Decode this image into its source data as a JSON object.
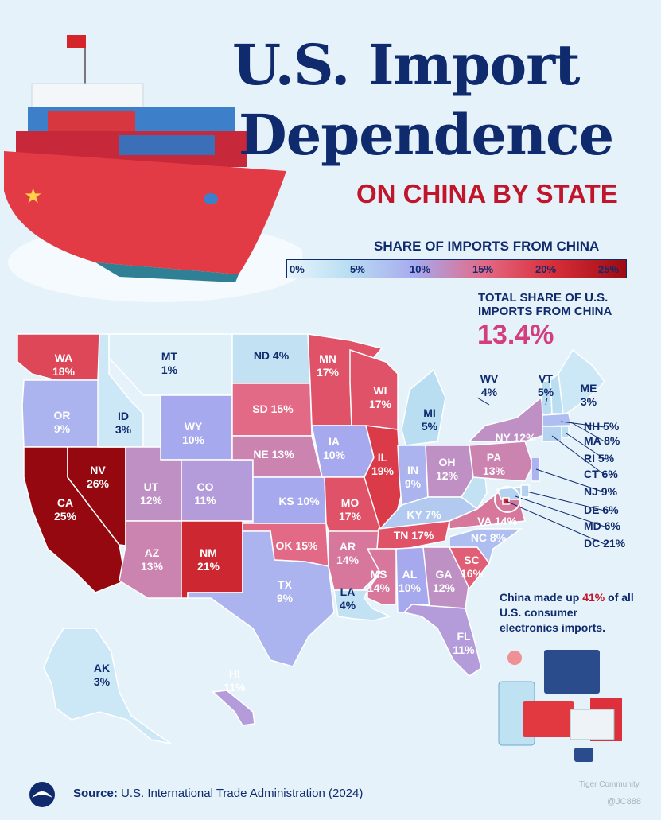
{
  "title_line1": "U.S. Import",
  "title_line2": "Dependence",
  "subtitle": "ON CHINA BY STATE",
  "legend": {
    "title": "SHARE OF IMPORTS FROM CHINA",
    "ticks": [
      "0%",
      "5%",
      "10%",
      "15%",
      "20%",
      "25%"
    ],
    "colors": [
      "#e8f4fb",
      "#b9def2",
      "#a7a9ee",
      "#e36a86",
      "#d92f3a",
      "#9e0b14"
    ]
  },
  "total": {
    "label": "TOTAL SHARE OF U.S. IMPORTS FROM CHINA",
    "value": "13.4%"
  },
  "callout": {
    "before": "China made up ",
    "pct": "41%",
    "middle": " of all U.S. ",
    "category": "consumer electronics",
    "after": " imports."
  },
  "states": [
    {
      "code": "WA",
      "value": 18
    },
    {
      "code": "OR",
      "value": 9
    },
    {
      "code": "CA",
      "value": 25
    },
    {
      "code": "NV",
      "value": 26
    },
    {
      "code": "ID",
      "value": 3
    },
    {
      "code": "MT",
      "value": 1
    },
    {
      "code": "WY",
      "value": 10
    },
    {
      "code": "UT",
      "value": 12
    },
    {
      "code": "CO",
      "value": 11
    },
    {
      "code": "AZ",
      "value": 13
    },
    {
      "code": "NM",
      "value": 21
    },
    {
      "code": "ND",
      "value": 4
    },
    {
      "code": "SD",
      "value": 15
    },
    {
      "code": "NE",
      "value": 13
    },
    {
      "code": "KS",
      "value": 10
    },
    {
      "code": "OK",
      "value": 15
    },
    {
      "code": "TX",
      "value": 9
    },
    {
      "code": "MN",
      "value": 17
    },
    {
      "code": "IA",
      "value": 10
    },
    {
      "code": "MO",
      "value": 17
    },
    {
      "code": "AR",
      "value": 14
    },
    {
      "code": "LA",
      "value": 4
    },
    {
      "code": "WI",
      "value": 17
    },
    {
      "code": "IL",
      "value": 19
    },
    {
      "code": "MI",
      "value": 5
    },
    {
      "code": "IN",
      "value": 9
    },
    {
      "code": "OH",
      "value": 12
    },
    {
      "code": "KY",
      "value": 7
    },
    {
      "code": "TN",
      "value": 17
    },
    {
      "code": "MS",
      "value": 14
    },
    {
      "code": "AL",
      "value": 10
    },
    {
      "code": "GA",
      "value": 12
    },
    {
      "code": "FL",
      "value": 11
    },
    {
      "code": "SC",
      "value": 16
    },
    {
      "code": "NC",
      "value": 8
    },
    {
      "code": "VA",
      "value": 14
    },
    {
      "code": "WV",
      "value": 4
    },
    {
      "code": "PA",
      "value": 13
    },
    {
      "code": "NY",
      "value": 12
    },
    {
      "code": "VT",
      "value": 5
    },
    {
      "code": "ME",
      "value": 3
    },
    {
      "code": "NH",
      "value": 5
    },
    {
      "code": "MA",
      "value": 8
    },
    {
      "code": "RI",
      "value": 5
    },
    {
      "code": "CT",
      "value": 6
    },
    {
      "code": "NJ",
      "value": 9
    },
    {
      "code": "DE",
      "value": 6
    },
    {
      "code": "MD",
      "value": 6
    },
    {
      "code": "DC",
      "value": 21
    },
    {
      "code": "AK",
      "value": 3
    },
    {
      "code": "HI",
      "value": 11
    }
  ],
  "source": {
    "label": "Source:",
    "text": " U.S. International Trade Administration (2024)"
  },
  "watermark": {
    "brand": "Tiger Community",
    "handle": "@JC888"
  }
}
